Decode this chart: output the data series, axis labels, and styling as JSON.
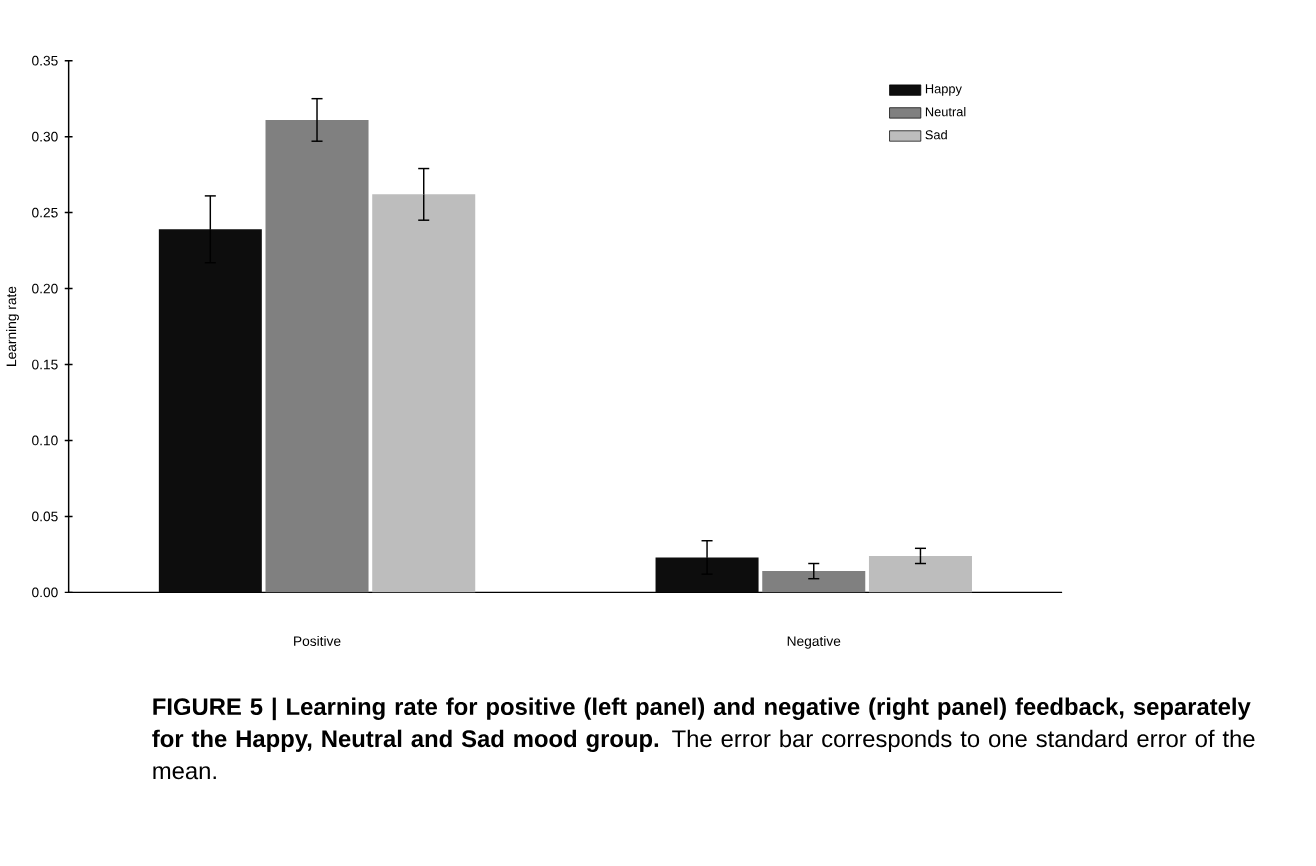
{
  "chart_data": {
    "type": "bar",
    "title": "**FIGURE 5 | Learning rate for positive (left panel) and negative (right panel) feedback, separately for the Happy, Neutral and Sad mood group.** The error bar corresponds to one standard error of the mean.",
    "ylabel": "Learning rate",
    "categories": [
      "Positive",
      "Negative"
    ],
    "series": [
      {
        "name": "Happy",
        "color": "#0d0d0d",
        "values": [
          0.239,
          0.023
        ],
        "errors": [
          0.022,
          0.011
        ]
      },
      {
        "name": "Neutral",
        "color": "#808080",
        "values": [
          0.311,
          0.014
        ],
        "errors": [
          0.014,
          0.005
        ]
      },
      {
        "name": "Sad",
        "color": "#bdbdbd",
        "values": [
          0.262,
          0.024
        ],
        "errors": [
          0.017,
          0.005
        ]
      }
    ],
    "ylim": [
      0,
      0.35
    ],
    "yticks": [
      {
        "value": 0,
        "label": "0.00"
      },
      {
        "value": 0.05,
        "label": "0.05"
      },
      {
        "value": 0.1,
        "label": "0.10"
      },
      {
        "value": 0.15,
        "label": "0.15"
      },
      {
        "value": 0.2,
        "label": "0.20"
      },
      {
        "value": 0.25,
        "label": "0.25"
      },
      {
        "value": 0.3,
        "label": "0.30"
      },
      {
        "value": 0.35,
        "label": "0.35"
      }
    ],
    "grid": false,
    "legend": "top right"
  }
}
